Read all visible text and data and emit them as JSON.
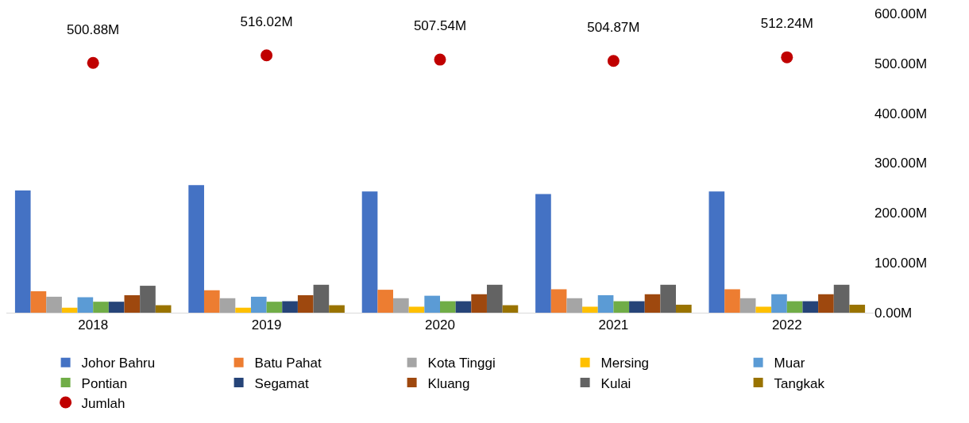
{
  "chart_data": {
    "type": "bar",
    "categories": [
      "2018",
      "2019",
      "2020",
      "2021",
      "2022"
    ],
    "series": [
      {
        "name": "Johor Bahru",
        "color": "#4472c4",
        "values": [
          245,
          256,
          243,
          238,
          243
        ]
      },
      {
        "name": "Batu Pahat",
        "color": "#ed7d31",
        "values": [
          43,
          45,
          46,
          47,
          47
        ]
      },
      {
        "name": "Kota Tinggi",
        "color": "#a5a5a5",
        "values": [
          32,
          29,
          29,
          29,
          29
        ]
      },
      {
        "name": "Mersing",
        "color": "#ffc000",
        "values": [
          10,
          10,
          12,
          12,
          12
        ]
      },
      {
        "name": "Muar",
        "color": "#5b9bd5",
        "values": [
          31,
          32,
          34,
          35,
          37
        ]
      },
      {
        "name": "Pontian",
        "color": "#70ad47",
        "values": [
          22,
          22,
          23,
          23,
          23
        ]
      },
      {
        "name": "Segamat",
        "color": "#264478",
        "values": [
          22,
          23,
          23,
          23,
          23
        ]
      },
      {
        "name": "Kluang",
        "color": "#9e480e",
        "values": [
          35,
          35,
          37,
          37,
          37
        ]
      },
      {
        "name": "Kulai",
        "color": "#636363",
        "values": [
          54,
          56,
          56,
          56,
          56
        ]
      },
      {
        "name": "Tangkak",
        "color": "#997300",
        "values": [
          15,
          15,
          15,
          16,
          16
        ]
      },
      {
        "name": "Jumlah",
        "type": "scatter",
        "color": "#c00000",
        "values": [
          500.88,
          516.02,
          507.54,
          504.87,
          512.24
        ],
        "value_labels": [
          "500.88M",
          "516.02M",
          "507.54M",
          "504.87M",
          "512.24M"
        ]
      }
    ],
    "ylim": [
      0,
      600
    ],
    "yticks": [
      {
        "value": 0,
        "label": "0.00M"
      },
      {
        "value": 100,
        "label": "100.00M"
      },
      {
        "value": 200,
        "label": "200.00M"
      },
      {
        "value": 300,
        "label": "300.00M"
      },
      {
        "value": 400,
        "label": "400.00M"
      },
      {
        "value": 500,
        "label": "500.00M"
      },
      {
        "value": 600,
        "label": "600.00M"
      }
    ],
    "grid": false,
    "legend": "bottom",
    "marker": "circle"
  }
}
